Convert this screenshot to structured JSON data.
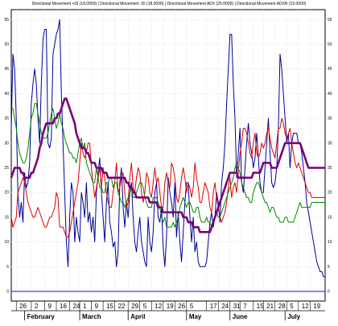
{
  "chart_data": {
    "type": "line",
    "title": "Directional Movement +DI (18.0000) | Directional Movement -DI (18.0000) | Directional Movement ADX (25.0000) | Directional Movement ADXR (15.0000)",
    "xlabel": "",
    "ylabel": "",
    "ylim": [
      0,
      57
    ],
    "y_ticks": [
      0,
      5,
      10,
      15,
      20,
      25,
      30,
      35,
      40,
      45,
      50,
      55
    ],
    "grid": true,
    "legend": "none",
    "reference_line": {
      "value": 0,
      "color": "#3b3bff"
    },
    "x": [
      0,
      1,
      2,
      3,
      4,
      5,
      6,
      7,
      8,
      9,
      10,
      11,
      12,
      13,
      14,
      15,
      16,
      17,
      18,
      19,
      20,
      21,
      22,
      23,
      24,
      25,
      26,
      27,
      28,
      29,
      30,
      31,
      32,
      33,
      34,
      35,
      36,
      37,
      38,
      39,
      40,
      41,
      42,
      43,
      44,
      45,
      46,
      47,
      48,
      49,
      50,
      51,
      52,
      53,
      54,
      55,
      56,
      57,
      58,
      59,
      60,
      61,
      62,
      63,
      64,
      65,
      66,
      67,
      68,
      69,
      70,
      71,
      72,
      73,
      74,
      75,
      76,
      77,
      78,
      79,
      80,
      81,
      82,
      83,
      84,
      85,
      86,
      87,
      88,
      89,
      90,
      91,
      92,
      93,
      94,
      95,
      96,
      97,
      98,
      99,
      100,
      101,
      102,
      103,
      104,
      105,
      106,
      107,
      108,
      109,
      110,
      111,
      112,
      113,
      114,
      115,
      116,
      117,
      118,
      119,
      120,
      121,
      122,
      123,
      124,
      125,
      126,
      127,
      128,
      129,
      130,
      131,
      132,
      133,
      134,
      135,
      136,
      137,
      138,
      139,
      140,
      141,
      142,
      143,
      144,
      145,
      146,
      147,
      148,
      149,
      150,
      151,
      152,
      153,
      154,
      155,
      156,
      157,
      158,
      159,
      160,
      161,
      162,
      163,
      164,
      165,
      166,
      167,
      168,
      169,
      170,
      171,
      172,
      173,
      174,
      175,
      176,
      177,
      178,
      179,
      180,
      181,
      182,
      183,
      184,
      185,
      186,
      187,
      188
    ],
    "x_tick_labels": [
      {
        "label": "26",
        "x": 3
      },
      {
        "label": "2",
        "x": 12
      },
      {
        "label": "9",
        "x": 20
      },
      {
        "label": "16",
        "x": 27
      },
      {
        "label": "24",
        "x": 35
      },
      {
        "label": "1",
        "x": 41
      },
      {
        "label": "9",
        "x": 48
      },
      {
        "label": "15",
        "x": 55
      },
      {
        "label": "22",
        "x": 62
      },
      {
        "label": "29",
        "x": 70
      },
      {
        "label": "5",
        "x": 77
      },
      {
        "label": "12",
        "x": 84
      },
      {
        "label": "19",
        "x": 91
      },
      {
        "label": "26",
        "x": 98
      },
      {
        "label": "5",
        "x": 105
      },
      {
        "label": "17",
        "x": 117
      },
      {
        "label": "24",
        "x": 124
      },
      {
        "label": "31",
        "x": 131
      },
      {
        "label": "7",
        "x": 137
      },
      {
        "label": "15",
        "x": 145
      },
      {
        "label": "21",
        "x": 151
      },
      {
        "label": "28",
        "x": 158
      },
      {
        "label": "5",
        "x": 165
      },
      {
        "label": "12",
        "x": 172
      },
      {
        "label": "19",
        "x": 179
      }
    ],
    "months": [
      {
        "label": "February",
        "x": 8
      },
      {
        "label": "March",
        "x": 41
      },
      {
        "label": "April",
        "x": 70
      },
      {
        "label": "May",
        "x": 105
      },
      {
        "label": "June",
        "x": 131
      },
      {
        "label": "July",
        "x": 164
      }
    ],
    "series": [
      {
        "color": "#000099",
        "values": [
          33,
          48,
          45,
          35,
          20,
          15,
          18,
          14,
          24,
          21,
          22,
          26,
          38,
          42,
          45,
          42,
          35,
          30,
          42,
          51,
          53,
          53,
          30,
          29,
          31,
          48,
          50,
          52,
          53,
          55,
          40,
          30,
          20,
          10,
          5,
          15,
          22,
          20,
          10,
          15,
          12,
          10,
          20,
          18,
          15,
          22,
          14,
          16,
          12,
          15,
          10,
          20,
          24,
          27,
          20,
          15,
          10,
          18,
          22,
          14,
          12,
          9,
          10,
          5,
          8,
          22,
          25,
          17,
          13,
          18,
          15,
          20,
          22,
          15,
          10,
          8,
          12,
          15,
          10,
          8,
          6,
          5,
          15,
          10,
          8,
          12,
          20,
          22,
          15,
          14,
          17,
          9,
          5,
          11,
          23,
          20,
          18,
          15,
          22,
          11,
          16,
          10,
          6,
          12,
          18,
          22,
          22,
          15,
          10,
          15,
          8,
          10,
          6,
          5,
          5,
          5,
          5,
          6,
          10,
          14,
          16,
          13,
          15,
          20,
          18,
          14,
          22,
          25,
          30,
          38,
          45,
          52,
          52,
          42,
          35,
          23,
          28,
          33,
          22,
          20,
          25,
          30,
          34,
          30,
          28,
          25,
          27,
          32,
          27,
          22,
          20,
          20,
          25,
          30,
          35,
          28,
          22,
          21,
          22,
          25,
          33,
          48,
          45,
          40,
          35,
          30,
          32,
          25,
          30,
          32,
          32,
          32,
          30,
          30,
          28,
          25,
          22,
          18,
          16,
          14,
          12,
          10,
          8,
          6,
          5,
          4,
          4,
          3,
          3
        ],
        "description_ref": "+DI"
      },
      {
        "color": "#e00000",
        "values": [
          15,
          13,
          14,
          15,
          20,
          21,
          22,
          23,
          22,
          20,
          18,
          17,
          16,
          15,
          15,
          16,
          17,
          16,
          15,
          14,
          13,
          13,
          14,
          15,
          15,
          16,
          17,
          20,
          19,
          13,
          13,
          13,
          12,
          11,
          11,
          12,
          14,
          16,
          18,
          20,
          22,
          26,
          30,
          28,
          27,
          28,
          30,
          30,
          25,
          22,
          19,
          21,
          23,
          25,
          21,
          25,
          23,
          20,
          18,
          17,
          17,
          20,
          22,
          26,
          20,
          21,
          23,
          24,
          20,
          17,
          18,
          23,
          26,
          21,
          20,
          23,
          25,
          24,
          20,
          18,
          20,
          24,
          23,
          20,
          19,
          22,
          25,
          22,
          23,
          20,
          17,
          17,
          22,
          24,
          22,
          21,
          26,
          25,
          23,
          19,
          18,
          20,
          23,
          25,
          23,
          20,
          22,
          21,
          19,
          21,
          26,
          23,
          21,
          18,
          18,
          20,
          22,
          21,
          20,
          17,
          16,
          20,
          22,
          19,
          17,
          15,
          14,
          15,
          16,
          18,
          21,
          23,
          19,
          21,
          22,
          20,
          24,
          28,
          30,
          33,
          33,
          32,
          30,
          28,
          27,
          30,
          32,
          28,
          27,
          28,
          30,
          29,
          30,
          32,
          33,
          31,
          29,
          28,
          27,
          30,
          33,
          33,
          35,
          34,
          32,
          31,
          32,
          33,
          30,
          28,
          26,
          25,
          26,
          25,
          24,
          23,
          22,
          21,
          20,
          20,
          19,
          19,
          19,
          19,
          19,
          19,
          19,
          19,
          19
        ],
        "description_ref": "-DI"
      },
      {
        "color": "#008800",
        "values": [
          37,
          37,
          35,
          33,
          30,
          28,
          27,
          26,
          26,
          27,
          29,
          32,
          35,
          36,
          38,
          38,
          36,
          34,
          32,
          31,
          31,
          31,
          32,
          34,
          36,
          37,
          35,
          33,
          34,
          36,
          34,
          33,
          31,
          30,
          29,
          28,
          28,
          27,
          27,
          26,
          28,
          30,
          31,
          29,
          30,
          26,
          25,
          24,
          23,
          22,
          22,
          25,
          23,
          21,
          21,
          20,
          20,
          22,
          22,
          23,
          23,
          21,
          22,
          22,
          20,
          19,
          18,
          18,
          17,
          18,
          19,
          20,
          21,
          19,
          19,
          20,
          21,
          22,
          22,
          21,
          19,
          18,
          17,
          17,
          17,
          19,
          19,
          19,
          18,
          17,
          15,
          14,
          15,
          13,
          13,
          13,
          13,
          14,
          13,
          14,
          15,
          17,
          18,
          19,
          18,
          17,
          18,
          18,
          17,
          16,
          16,
          17,
          17,
          15,
          14,
          14,
          14,
          15,
          14,
          14,
          13,
          14,
          15,
          16,
          15,
          15,
          16,
          17,
          18,
          19,
          20,
          21,
          22,
          23,
          25,
          26,
          25,
          24,
          22,
          21,
          20,
          19,
          19,
          18,
          18,
          20,
          21,
          22,
          22,
          21,
          20,
          19,
          18,
          18,
          17,
          16,
          17,
          17,
          16,
          15,
          15,
          14,
          14,
          14,
          15,
          15,
          14,
          14,
          14,
          14,
          15,
          16,
          17,
          18,
          17,
          17,
          17,
          17,
          17,
          17,
          18,
          18,
          18,
          18,
          18,
          18,
          18,
          18,
          18
        ],
        "description_ref": "ADX"
      },
      {
        "color": "#7a007a",
        "values": [
          23,
          24,
          25,
          25,
          25,
          25,
          24,
          24,
          23,
          23,
          23,
          23,
          24,
          24,
          25,
          26,
          27,
          29,
          30,
          32,
          33,
          34,
          34,
          34,
          34,
          34,
          35,
          35,
          36,
          36,
          37,
          38,
          39,
          39,
          38,
          37,
          36,
          35,
          34,
          32,
          31,
          30,
          29,
          29,
          29,
          28,
          28,
          27,
          26,
          26,
          26,
          25,
          25,
          25,
          25,
          24,
          24,
          24,
          23,
          23,
          23,
          23,
          23,
          23,
          23,
          23,
          23,
          23,
          23,
          22,
          22,
          21,
          21,
          20,
          20,
          19,
          19,
          19,
          19,
          19,
          19,
          19,
          19,
          18,
          18,
          18,
          18,
          18,
          17,
          17,
          17,
          16,
          16,
          16,
          16,
          16,
          16,
          16,
          16,
          16,
          16,
          16,
          16,
          15,
          15,
          15,
          14,
          14,
          14,
          13,
          13,
          13,
          13,
          12,
          12,
          12,
          12,
          12,
          12,
          12,
          13,
          14,
          15,
          16,
          17,
          18,
          19,
          20,
          21,
          22,
          23,
          24,
          24,
          24,
          24,
          24,
          23,
          23,
          23,
          23,
          23,
          23,
          23,
          23,
          23,
          24,
          24,
          24,
          24,
          24,
          25,
          26,
          26,
          26,
          26,
          26,
          25,
          25,
          25,
          25,
          26,
          27,
          28,
          29,
          30,
          30,
          30,
          30,
          30,
          30,
          30,
          30,
          30,
          30,
          29,
          28,
          27,
          26,
          25,
          25,
          25,
          25,
          25,
          25,
          25,
          25,
          25,
          25,
          25
        ],
        "description_ref": "ADXR"
      }
    ]
  }
}
